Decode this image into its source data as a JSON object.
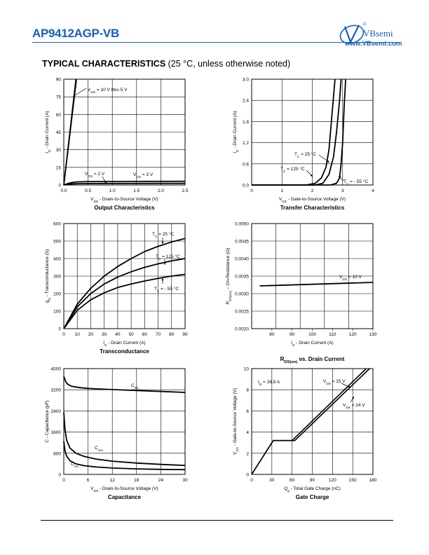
{
  "header": {
    "part_number": "AP9412AGP-VB",
    "brand_name": "VBsemi",
    "brand_url": "www.VBsemi.com"
  },
  "section": {
    "title_bold": "TYPICAL CHARACTERISTICS",
    "title_note": " (25 °C, unless otherwise noted)"
  },
  "colors": {
    "brand": "#1560c0",
    "curve": "#000000",
    "grid": "#000000"
  },
  "chart_data": [
    {
      "id": "output",
      "type": "line",
      "title": "Output Characteristics",
      "xlabel": "VDS - Drain-to-Source Voltage (V)",
      "ylabel": "ID - Drain Current (A)",
      "xlim": [
        0,
        2.5
      ],
      "ylim": [
        0,
        90
      ],
      "xticks": [
        "0.0",
        "0.5",
        "1.0",
        "1.5",
        "2.0",
        "2.5"
      ],
      "yticks": [
        "0",
        "15",
        "30",
        "45",
        "60",
        "75",
        "90"
      ],
      "grid": true,
      "annotations": [
        "VGS = 10 V thru 5 V",
        "VGS = 2 V",
        "VGS = 3 V"
      ],
      "series": [
        {
          "name": "VGS = 10 V thru 5 V",
          "x": [
            0,
            0.05,
            0.1,
            0.15,
            0.2,
            0.25
          ],
          "y": [
            0,
            18,
            36,
            54,
            72,
            90
          ]
        },
        {
          "name": "VGS = 3 V",
          "x": [
            0,
            0.1,
            0.2,
            0.3,
            0.5,
            1.0,
            1.5,
            2.0,
            2.5
          ],
          "y": [
            0,
            1.5,
            2.3,
            2.7,
            2.9,
            3.0,
            3.05,
            3.1,
            3.15
          ]
        },
        {
          "name": "VGS = 2 V",
          "x": [
            0,
            0.1,
            0.2,
            0.4,
            1.0,
            1.5,
            2.0,
            2.5
          ],
          "y": [
            0,
            0.7,
            1.0,
            1.2,
            1.3,
            1.3,
            1.35,
            1.35
          ]
        }
      ]
    },
    {
      "id": "transfer",
      "type": "line",
      "title": "Transfer Characteristics",
      "xlabel": "VGS - Gate-to-Source Voltage (V)",
      "ylabel": "ID - Drain Current (A)",
      "xlim": [
        0,
        4
      ],
      "ylim": [
        0,
        3.0
      ],
      "xticks": [
        "0",
        "1",
        "2",
        "3",
        "4"
      ],
      "yticks": [
        "0.0",
        "0.6",
        "1.2",
        "1.8",
        "2.4",
        "3.0"
      ],
      "grid": true,
      "annotations": [
        "TC = 25 °C",
        "TC = 125 °C",
        "TC = - 55 °C"
      ],
      "series": [
        {
          "name": "TC = 125 °C",
          "x": [
            0,
            1.8,
            2.1,
            2.3,
            2.45,
            2.55,
            2.65,
            2.75
          ],
          "y": [
            0,
            0,
            0.05,
            0.2,
            0.5,
            1.0,
            2.0,
            3.0
          ]
        },
        {
          "name": "TC = 25 °C",
          "x": [
            0,
            2.1,
            2.35,
            2.55,
            2.7,
            2.8,
            2.9,
            2.95
          ],
          "y": [
            0,
            0,
            0.05,
            0.3,
            0.8,
            1.5,
            2.4,
            3.0
          ]
        },
        {
          "name": "TC = - 55 °C",
          "x": [
            0,
            2.6,
            2.8,
            2.9,
            2.95,
            3.0,
            3.05,
            3.1
          ],
          "y": [
            0,
            0,
            0.05,
            0.2,
            0.6,
            1.2,
            2.2,
            3.0
          ]
        }
      ]
    },
    {
      "id": "transconductance",
      "type": "line",
      "title": "Transconductance",
      "xlabel": "ID - Drain Current (A)",
      "ylabel": "gfs - Transconductance (S)",
      "xlim": [
        0,
        90
      ],
      "ylim": [
        0,
        600
      ],
      "xticks": [
        "0",
        "10",
        "20",
        "30",
        "40",
        "50",
        "60",
        "70",
        "80",
        "90"
      ],
      "yticks": [
        "0",
        "100",
        "200",
        "300",
        "400",
        "500",
        "600"
      ],
      "grid": true,
      "annotations": [
        "TC = 25 °C",
        "TC = 125 °C",
        "TC = - 55 °C"
      ],
      "series": [
        {
          "name": "TC = 25 °C",
          "x": [
            0,
            10,
            20,
            30,
            40,
            50,
            60,
            70,
            80,
            90
          ],
          "y": [
            0,
            140,
            230,
            300,
            355,
            400,
            440,
            470,
            495,
            515
          ]
        },
        {
          "name": "TC = 125 °C",
          "x": [
            0,
            10,
            20,
            30,
            40,
            50,
            60,
            70,
            80,
            90
          ],
          "y": [
            0,
            125,
            200,
            255,
            295,
            325,
            350,
            370,
            387,
            400
          ]
        },
        {
          "name": "TC = - 55 °C",
          "x": [
            0,
            10,
            20,
            30,
            40,
            50,
            60,
            70,
            80,
            90
          ],
          "y": [
            0,
            105,
            165,
            205,
            235,
            255,
            272,
            287,
            300,
            310
          ]
        }
      ]
    },
    {
      "id": "rdson",
      "type": "line",
      "title_main": "R",
      "title_sub": "DS(on)",
      "title_rest": " vs. Drain Current",
      "xlabel": "ID - Drain Current (A)",
      "ylabel": "RDS(on) - On-Resistance (Ω)",
      "xlim": [
        70,
        130
      ],
      "ylim": [
        0.002,
        0.005
      ],
      "xticks": [
        "80",
        "90",
        "100",
        "110",
        "120",
        "130"
      ],
      "yticks": [
        "0.0020",
        "0.0025",
        "0.0030",
        "0.0035",
        "0.0040",
        "0.0045",
        "0.0050"
      ],
      "grid": true,
      "annotations": [
        "VGS = 10 V"
      ],
      "series": [
        {
          "name": "VGS = 10 V",
          "x": [
            74,
            130
          ],
          "y": [
            0.00322,
            0.00332
          ]
        }
      ]
    },
    {
      "id": "capacitance",
      "type": "line",
      "title": "Capacitance",
      "xlabel": "VDS - Drain-to-Source Voltage (V)",
      "ylabel": "C - Capacitance (pF)",
      "xlim": [
        0,
        30
      ],
      "ylim": [
        0,
        4000
      ],
      "xticks": [
        "0",
        "6",
        "12",
        "18",
        "24",
        "30"
      ],
      "yticks": [
        "0",
        "800",
        "1600",
        "2400",
        "3200",
        "4000"
      ],
      "grid": true,
      "annotations": [
        "Ciss",
        "Coss",
        "Crss"
      ],
      "series": [
        {
          "name": "Ciss",
          "x": [
            0,
            0.5,
            1,
            2,
            4,
            6,
            10,
            15,
            20,
            25,
            30
          ],
          "y": [
            3700,
            3500,
            3400,
            3330,
            3280,
            3250,
            3220,
            3190,
            3160,
            3130,
            3100
          ]
        },
        {
          "name": "Coss",
          "x": [
            0,
            0.3,
            0.7,
            1.5,
            3,
            5,
            8,
            12,
            18,
            24,
            30
          ],
          "y": [
            2350,
            1700,
            1300,
            1000,
            800,
            680,
            580,
            500,
            430,
            380,
            340
          ]
        },
        {
          "name": "Crss",
          "x": [
            0,
            0.3,
            0.7,
            1.5,
            3,
            5,
            8,
            12,
            18,
            24,
            30
          ],
          "y": [
            1250,
            900,
            700,
            520,
            400,
            330,
            280,
            240,
            210,
            190,
            180
          ]
        }
      ]
    },
    {
      "id": "gatecharge",
      "type": "line",
      "title": "Gate Charge",
      "xlabel": "Qg - Total Gate Charge (nC)",
      "ylabel": "VGS - Gate-to-Source Voltage (V)",
      "xlim": [
        0,
        180
      ],
      "ylim": [
        0,
        10
      ],
      "xticks": [
        "0",
        "30",
        "60",
        "90",
        "120",
        "150",
        "180"
      ],
      "yticks": [
        "0",
        "2",
        "4",
        "6",
        "8",
        "10"
      ],
      "grid": true,
      "annotations": [
        "ID = 28.8 A",
        "VDS = 15 V",
        "VDS = 24 V"
      ],
      "series": [
        {
          "name": "VDS = 15 V",
          "x": [
            0,
            32,
            60,
            170
          ],
          "y": [
            0,
            3.2,
            3.2,
            10
          ]
        },
        {
          "name": "VDS = 24 V",
          "x": [
            0,
            32,
            64,
            175
          ],
          "y": [
            0,
            3.2,
            3.2,
            10
          ]
        }
      ]
    }
  ]
}
